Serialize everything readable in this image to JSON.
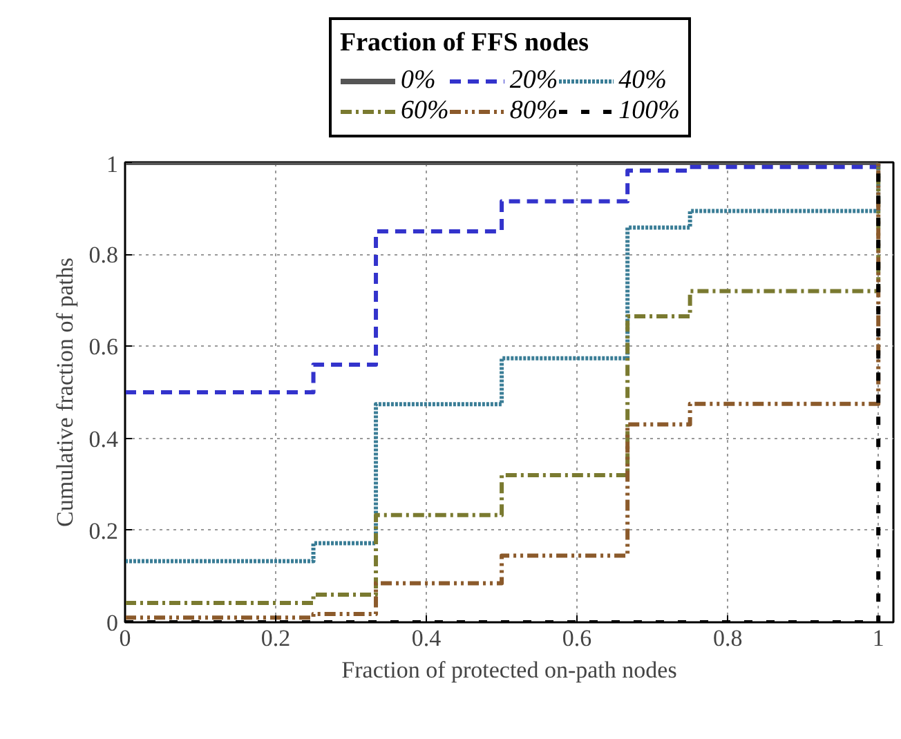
{
  "chart_data": {
    "type": "step",
    "xlabel": "Fraction of protected on-path nodes",
    "ylabel": "Cumulative fraction of paths",
    "legend_title": "Fraction of FFS nodes",
    "x": [
      0,
      0.25,
      0.333,
      0.5,
      0.667,
      0.75,
      1
    ],
    "series": [
      {
        "name": "0%",
        "color": "#555555",
        "line_style": "solid",
        "values": [
          1,
          1,
          1,
          1,
          1,
          1,
          1
        ]
      },
      {
        "name": "20%",
        "color": "#3333cc",
        "line_style": "dashed",
        "values": [
          0.5,
          0.56,
          0.85,
          0.915,
          0.982,
          0.99,
          1
        ]
      },
      {
        "name": "40%",
        "color": "#3a7d96",
        "line_style": "dotted",
        "values": [
          0.133,
          0.172,
          0.474,
          0.574,
          0.858,
          0.894,
          1
        ]
      },
      {
        "name": "60%",
        "color": "#7a7a30",
        "line_style": "dashdot",
        "values": [
          0.042,
          0.06,
          0.233,
          0.32,
          0.665,
          0.72,
          1
        ]
      },
      {
        "name": "80%",
        "color": "#8b5a2b",
        "line_style": "dashdotdot",
        "values": [
          0.01,
          0.018,
          0.085,
          0.145,
          0.43,
          0.475,
          1
        ]
      },
      {
        "name": "100%",
        "color": "#000000",
        "line_style": "loosedash",
        "values": [
          0,
          0,
          0,
          0,
          0,
          0,
          1
        ]
      }
    ],
    "xlim": [
      0,
      1.02
    ],
    "ylim": [
      0,
      1
    ],
    "xticks": [
      0,
      0.2,
      0.4,
      0.6,
      0.8,
      1
    ],
    "yticks": [
      0,
      0.2,
      0.4,
      0.6,
      0.8,
      1
    ],
    "grid": true,
    "legend": "top"
  }
}
